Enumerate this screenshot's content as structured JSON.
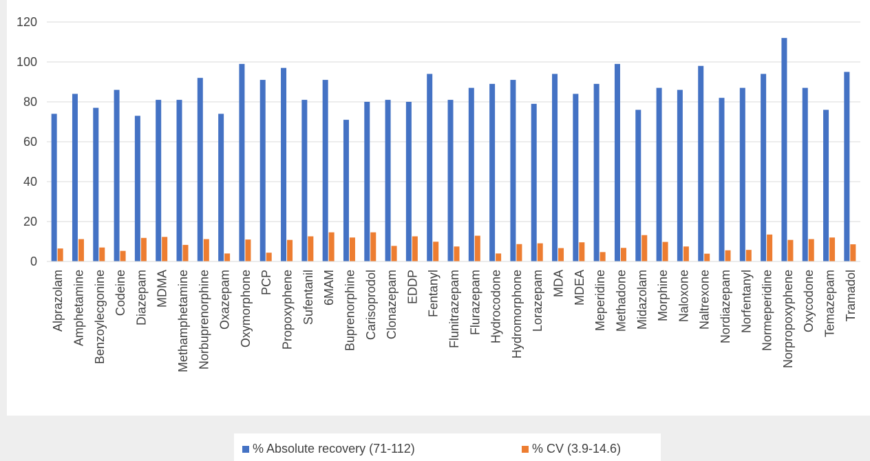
{
  "chart_data": {
    "type": "bar",
    "title": "",
    "xlabel": "",
    "ylabel": "",
    "ylim": [
      0,
      120
    ],
    "yticks": [
      0,
      20,
      40,
      60,
      80,
      100,
      120
    ],
    "grid": true,
    "legend_position": "bottom",
    "categories": [
      "Alprazolam",
      "Amphetamine",
      "Benzoylecgonine",
      "Codeine",
      "Diazepam",
      "MDMA",
      "Methamphetamine",
      "Norbuprenorphine",
      "Oxazepam",
      "Oxymorphone",
      "PCP",
      "Propoxyphene",
      "Sufentanil",
      "6MAM",
      "Buprenorphine",
      "Carisoprodol",
      "Clonazepam",
      "EDDP",
      "Fentanyl",
      "Flunitrazepam",
      "Flurazepam",
      "Hydrocodone",
      "Hydromorphone",
      "Lorazepam",
      "MDA",
      "MDEA",
      "Meperidine",
      "Methadone",
      "Midazolam",
      "Morphine",
      "Naloxone",
      "Naltrexone",
      "Nordiazepam",
      "Norfentanyl",
      "Normeperidine",
      "Norpropoxyphene",
      "Oxycodone",
      "Temazepam",
      "Tramadol"
    ],
    "series": [
      {
        "name": "% Absolute recovery (71-112)",
        "color": "#4472C4",
        "values": [
          74,
          84,
          77,
          86,
          73,
          81,
          81,
          92,
          74,
          99,
          91,
          97,
          81,
          91,
          71,
          80,
          81,
          80,
          94,
          81,
          87,
          89,
          91,
          79,
          94,
          84,
          89,
          99,
          76,
          87,
          86,
          98,
          82,
          87,
          94,
          112,
          87,
          76,
          95
        ]
      },
      {
        "name": "% CV (3.9-14.6)",
        "color": "#ED7D31",
        "values": [
          6.5,
          11.2,
          7.0,
          5.3,
          11.8,
          12.3,
          8.3,
          11.2,
          4.0,
          11.0,
          4.4,
          10.8,
          12.6,
          14.6,
          12.0,
          14.6,
          7.8,
          12.6,
          9.9,
          7.5,
          12.9,
          4.0,
          8.7,
          9.1,
          6.7,
          9.6,
          4.7,
          6.8,
          13.2,
          9.8,
          7.5,
          3.9,
          5.6,
          5.8,
          13.5,
          10.8,
          11.2,
          12.0,
          8.6
        ]
      }
    ]
  }
}
